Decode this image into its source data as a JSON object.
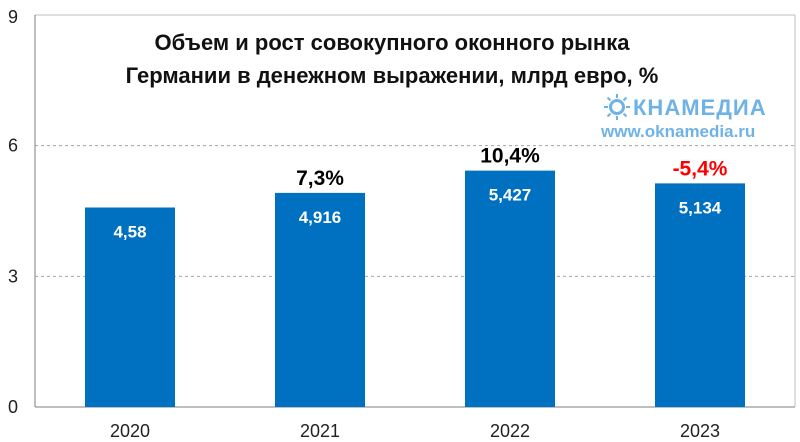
{
  "chart_data": {
    "type": "bar",
    "title_lines": [
      "Объем и рост совокупного оконного рынка",
      "Германии в денежном выражении, млрд евро, %"
    ],
    "categories": [
      "2020",
      "2021",
      "2022",
      "2023"
    ],
    "values": [
      4.58,
      4.916,
      5.427,
      5.134
    ],
    "value_labels": [
      "4,58",
      "4,916",
      "5,427",
      "5,134"
    ],
    "growth_labels": [
      "",
      "7,3%",
      "10,4%",
      "-5,4%"
    ],
    "growth_colors": [
      "#000000",
      "#000000",
      "#000000",
      "#ff0000"
    ],
    "y_ticks": [
      0,
      3,
      6,
      9
    ],
    "ylim": [
      0,
      9
    ],
    "grid": true,
    "bar_color": "#0070c0",
    "legend": "none"
  },
  "branding": {
    "logo_prefix": "О",
    "logo_text": "КНАМЕДИА",
    "url": "www.oknamedia.ru",
    "logo_color": "#6fb3e6"
  }
}
